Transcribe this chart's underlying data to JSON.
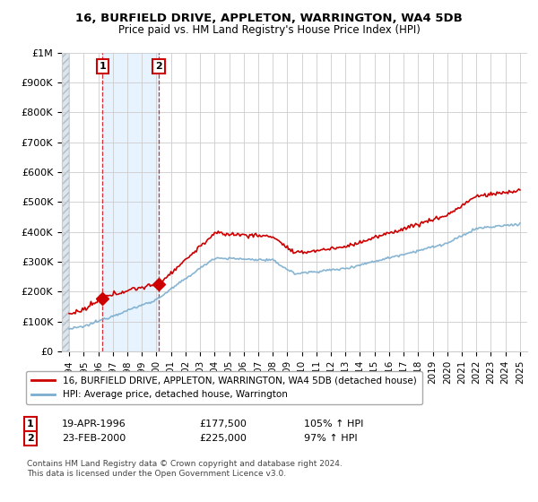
{
  "title1": "16, BURFIELD DRIVE, APPLETON, WARRINGTON, WA4 5DB",
  "title2": "Price paid vs. HM Land Registry's House Price Index (HPI)",
  "sale1_date": "19-APR-1996",
  "sale1_price": 177500,
  "sale1_year": 1996.3,
  "sale2_date": "23-FEB-2000",
  "sale2_price": 225000,
  "sale2_year": 2000.15,
  "legend_label_red": "16, BURFIELD DRIVE, APPLETON, WARRINGTON, WA4 5DB (detached house)",
  "legend_label_blue": "HPI: Average price, detached house, Warrington",
  "footnote1": "Contains HM Land Registry data © Crown copyright and database right 2024.",
  "footnote2": "This data is licensed under the Open Government Licence v3.0.",
  "red_color": "#cc0000",
  "blue_color": "#7aadce",
  "shade_color": "#ddeeff",
  "hatch_color": "#d0d8e0",
  "xlim": [
    1993.5,
    2025.5
  ],
  "ylim": [
    0,
    1000000
  ],
  "yticks": [
    0,
    100000,
    200000,
    300000,
    400000,
    500000,
    600000,
    700000,
    800000,
    900000,
    1000000
  ],
  "ytick_labels": [
    "£0",
    "£100K",
    "£200K",
    "£300K",
    "£400K",
    "£500K",
    "£600K",
    "£700K",
    "£800K",
    "£900K",
    "£1M"
  ],
  "xticks": [
    1994,
    1995,
    1996,
    1997,
    1998,
    1999,
    2000,
    2001,
    2002,
    2003,
    2004,
    2005,
    2006,
    2007,
    2008,
    2009,
    2010,
    2011,
    2012,
    2013,
    2014,
    2015,
    2016,
    2017,
    2018,
    2019,
    2020,
    2021,
    2022,
    2023,
    2024,
    2025
  ]
}
